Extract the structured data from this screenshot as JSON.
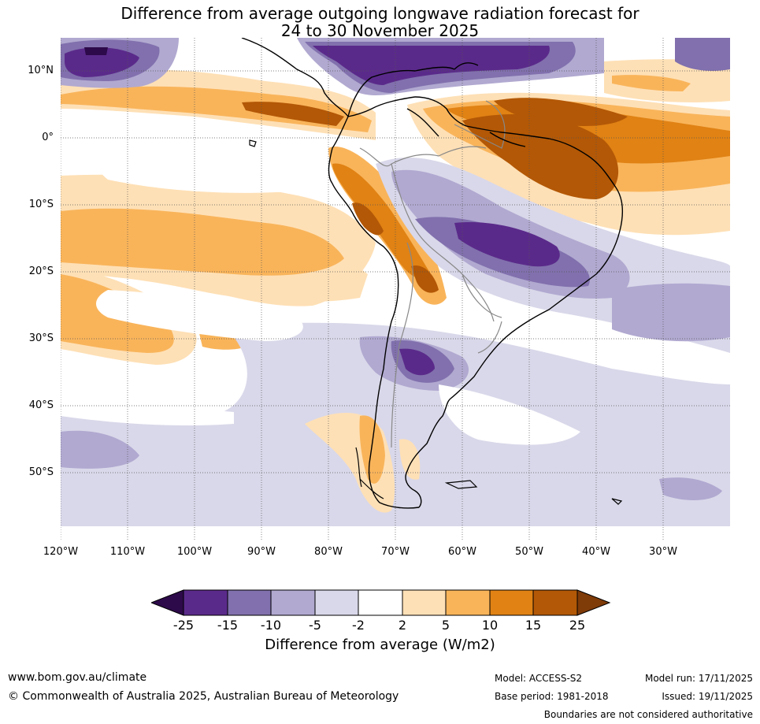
{
  "title_line1": "Difference from average outgoing longwave radiation forecast for",
  "title_line2": "24 to 30 November 2025",
  "lat_labels": [
    "10°N",
    "0°",
    "10°S",
    "20°S",
    "30°S",
    "40°S",
    "50°S"
  ],
  "lon_labels": [
    "120°W",
    "110°W",
    "100°W",
    "90°W",
    "80°W",
    "70°W",
    "60°W",
    "50°W",
    "40°W",
    "30°W"
  ],
  "colorbar": {
    "ticks": [
      "-25",
      "-15",
      "-10",
      "-5",
      "-2",
      "2",
      "5",
      "10",
      "15",
      "25"
    ],
    "colors": [
      "#2d0a4a",
      "#5a2a8a",
      "#8170ad",
      "#b1a9d0",
      "#d9d8ea",
      "#ffffff",
      "#fee0b6",
      "#f9b45a",
      "#e08214",
      "#b35806",
      "#7f3b08"
    ],
    "label": "Difference from average (W/m2)"
  },
  "footer": {
    "website": "www.bom.gov.au/climate",
    "copyright": "© Commonwealth of Australia 2025, Australian Bureau of Meteorology",
    "model": "Model: ACCESS-S2",
    "model_run": "Model run: 17/11/2025",
    "base_period": "Base period: 1981-2018",
    "issued": "Issued: 19/11/2025",
    "disclaimer": "Boundaries are not considered authoritative"
  }
}
